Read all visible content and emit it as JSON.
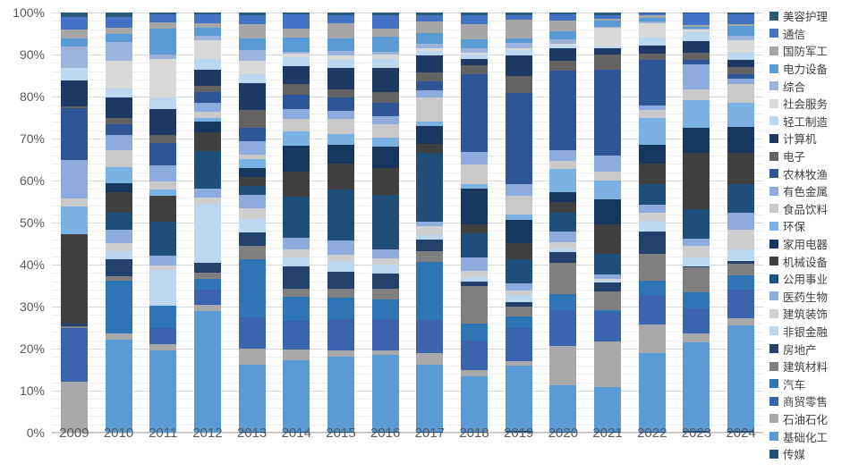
{
  "chart_data": {
    "type": "bar",
    "variant": "stacked-100-percent",
    "title": "",
    "xlabel": "",
    "ylabel": "",
    "ylim": [
      0,
      100
    ],
    "grid": "horizontal, minor every 2%, major every 10%",
    "legend_position": "right",
    "ytick_labels": [
      "0%",
      "10%",
      "20%",
      "30%",
      "40%",
      "50%",
      "60%",
      "70%",
      "80%",
      "90%",
      "100%"
    ],
    "categories": [
      "2009",
      "2010",
      "2011",
      "2012",
      "2013",
      "2014",
      "2015",
      "2016",
      "2017",
      "2018",
      "2019",
      "2020",
      "2021",
      "2022",
      "2023",
      "2024"
    ],
    "stack_note": "values are percent of each year's total; stacked bottom-up in reverse legend order (last legend item at bottom)",
    "series": [
      {
        "name": "美容护理",
        "color": "#2A5A78",
        "values": [
          1,
          1,
          0.5,
          0.5,
          0.5,
          0.5,
          0.5,
          0.5,
          0.5,
          0.5,
          0.5,
          0.5,
          0.5,
          0.2,
          0.2,
          0.3
        ]
      },
      {
        "name": "通信",
        "color": "#4472C4",
        "values": [
          3,
          2.5,
          2,
          2,
          2,
          3.5,
          2,
          3,
          1.5,
          2,
          1,
          1.5,
          1,
          0.5,
          2.5,
          2
        ]
      },
      {
        "name": "国防军工",
        "color": "#A6A6A6",
        "values": [
          2,
          1.5,
          1.5,
          1,
          3.3,
          2,
          3.5,
          2,
          2.5,
          3.5,
          4,
          2.5,
          0.3,
          0.5,
          0.5,
          0.5
        ]
      },
      {
        "name": "电力设备",
        "color": "#5B9BD5",
        "values": [
          2,
          2,
          6.5,
          2,
          2.5,
          3.5,
          3,
          3.5,
          2.5,
          2,
          1,
          2,
          1.5,
          1,
          0.3,
          2
        ]
      },
      {
        "name": "综合",
        "color": "#9DB3DC",
        "values": [
          5,
          4.5,
          1,
          1,
          2.5,
          0.5,
          1,
          0.5,
          1,
          1,
          1,
          1,
          0.3,
          0.3,
          0.3,
          1
        ]
      },
      {
        "name": "社会服务",
        "color": "#D9D9D9",
        "values": [
          0,
          6.5,
          9.5,
          4.5,
          3,
          1,
          1,
          1,
          0.5,
          0.5,
          0.5,
          0.5,
          4.5,
          3.5,
          0.5,
          2.5
        ]
      },
      {
        "name": "轻工制造",
        "color": "#BDD7EE",
        "values": [
          3,
          2,
          3,
          2.5,
          2,
          2,
          2,
          2,
          1,
          1,
          1,
          0.5,
          0.5,
          2,
          2,
          1.5
        ]
      },
      {
        "name": "计算机",
        "color": "#1F3864",
        "values": [
          6,
          5,
          6.5,
          4,
          6,
          4.5,
          5,
          5.5,
          4,
          1.5,
          4.5,
          3,
          1.5,
          2,
          2.5,
          1.5
        ]
      },
      {
        "name": "电子",
        "color": "#636363",
        "values": [
          0.5,
          1.5,
          2,
          1.5,
          4,
          2.5,
          2,
          2.5,
          2,
          2,
          3.5,
          2.5,
          3.5,
          1.5,
          1.5,
          1.5
        ]
      },
      {
        "name": "农林牧渔",
        "color": "#2F5597",
        "values": [
          12,
          2.5,
          5.5,
          2.5,
          3,
          3.5,
          3,
          3,
          2,
          17.5,
          19.5,
          19,
          20.5,
          11,
          1,
          1
        ]
      },
      {
        "name": "有色金属",
        "color": "#8FAADC",
        "values": [
          9,
          3.5,
          4,
          2,
          3,
          2.5,
          2,
          2,
          1.5,
          3,
          2.5,
          2.5,
          4,
          1,
          5.5,
          1
        ]
      },
      {
        "name": "食品饮料",
        "color": "#C9C9C9",
        "values": [
          2,
          4,
          2,
          1.5,
          1,
          3,
          3.5,
          3,
          5.5,
          4.5,
          4,
          2,
          2,
          2,
          2.5,
          4
        ]
      },
      {
        "name": "环保",
        "color": "#7CB1E3",
        "values": [
          6.5,
          4,
          1.5,
          1,
          2,
          3.5,
          2.5,
          2,
          1,
          1,
          1,
          5.5,
          4.5,
          6.5,
          6,
          5
        ]
      },
      {
        "name": "家用电器",
        "color": "#17375E",
        "values": [
          0,
          2,
          0,
          2.5,
          2,
          6.5,
          4.5,
          5,
          4,
          8,
          5,
          2.5,
          6,
          4.5,
          5.5,
          5.5
        ]
      },
      {
        "name": "机械设备",
        "color": "#404040",
        "values": [
          21,
          5,
          6.5,
          4.5,
          2,
          6,
          6,
          6,
          2,
          2,
          3.5,
          2.5,
          7,
          5,
          12.5,
          6.5
        ]
      },
      {
        "name": "公用事业",
        "color": "#1F4E79",
        "values": [
          0,
          4,
          8.5,
          9,
          2,
          10,
          12,
          12.5,
          15.5,
          5.5,
          5,
          4.5,
          5,
          5,
          6.5,
          6
        ]
      },
      {
        "name": "医药生物",
        "color": "#8FAADC",
        "values": [
          0,
          3,
          2.5,
          2,
          3,
          3,
          3.5,
          2,
          1,
          3,
          1.5,
          2.5,
          1,
          2,
          1.5,
          3.5
        ]
      },
      {
        "name": "建筑装饰",
        "color": "#CFCFCF",
        "values": [
          0,
          2,
          1,
          1.5,
          2.5,
          2,
          1.5,
          1.5,
          2,
          1.5,
          1,
          1.5,
          0.5,
          2,
          2.5,
          4
        ]
      },
      {
        "name": "非银金融",
        "color": "#BDD7EE",
        "values": [
          0,
          2,
          9,
          14,
          3,
          2,
          2.5,
          2,
          1,
          1,
          1.5,
          1,
          0.5,
          2.5,
          2,
          2.5
        ]
      },
      {
        "name": "房地产",
        "color": "#24416B",
        "values": [
          0.5,
          4,
          0,
          2.5,
          3,
          5.5,
          4,
          3.5,
          2.5,
          1,
          1,
          2.5,
          2,
          5.5,
          0.3,
          0.5
        ]
      },
      {
        "name": "建筑材料",
        "color": "#7F7F7F",
        "values": [
          0.5,
          1,
          0,
          1.5,
          3,
          2,
          2,
          2.5,
          2.5,
          8.5,
          2,
          7.5,
          4.5,
          6.5,
          5.5,
          2.5
        ]
      },
      {
        "name": "汽车",
        "color": "#2E75B6",
        "values": [
          0,
          12.5,
          5.5,
          2.5,
          13,
          6,
          5,
          4.5,
          13,
          4,
          2.5,
          4,
          0.5,
          3.5,
          3.5,
          3
        ]
      },
      {
        "name": "商贸零售",
        "color": "#3C64AE",
        "values": [
          12.5,
          0,
          4,
          3.5,
          7,
          7,
          7.5,
          7,
          7.5,
          6.5,
          7,
          8.5,
          7,
          7,
          5.5,
          6
        ]
      },
      {
        "name": "石油石化",
        "color": "#A9A9A9",
        "values": [
          12,
          1.5,
          1.5,
          1.5,
          3.5,
          2.5,
          1.5,
          1,
          2.5,
          1.5,
          1,
          9.5,
          11,
          7,
          2,
          1.5
        ]
      },
      {
        "name": "基础化工",
        "color": "#5B9BD5",
        "values": [
          0,
          22,
          20.5,
          29,
          15,
          17.5,
          17.5,
          17.5,
          15,
          12.5,
          14,
          11,
          10.5,
          19,
          19.5,
          22
        ]
      },
      {
        "name": "传媒",
        "color": "#1F4E79",
        "values": [
          0,
          0,
          0,
          0,
          0.3,
          0.3,
          0.3,
          0.3,
          0.3,
          0.3,
          0.3,
          0.3,
          0.3,
          0.3,
          0.3,
          0.3
        ]
      }
    ]
  }
}
